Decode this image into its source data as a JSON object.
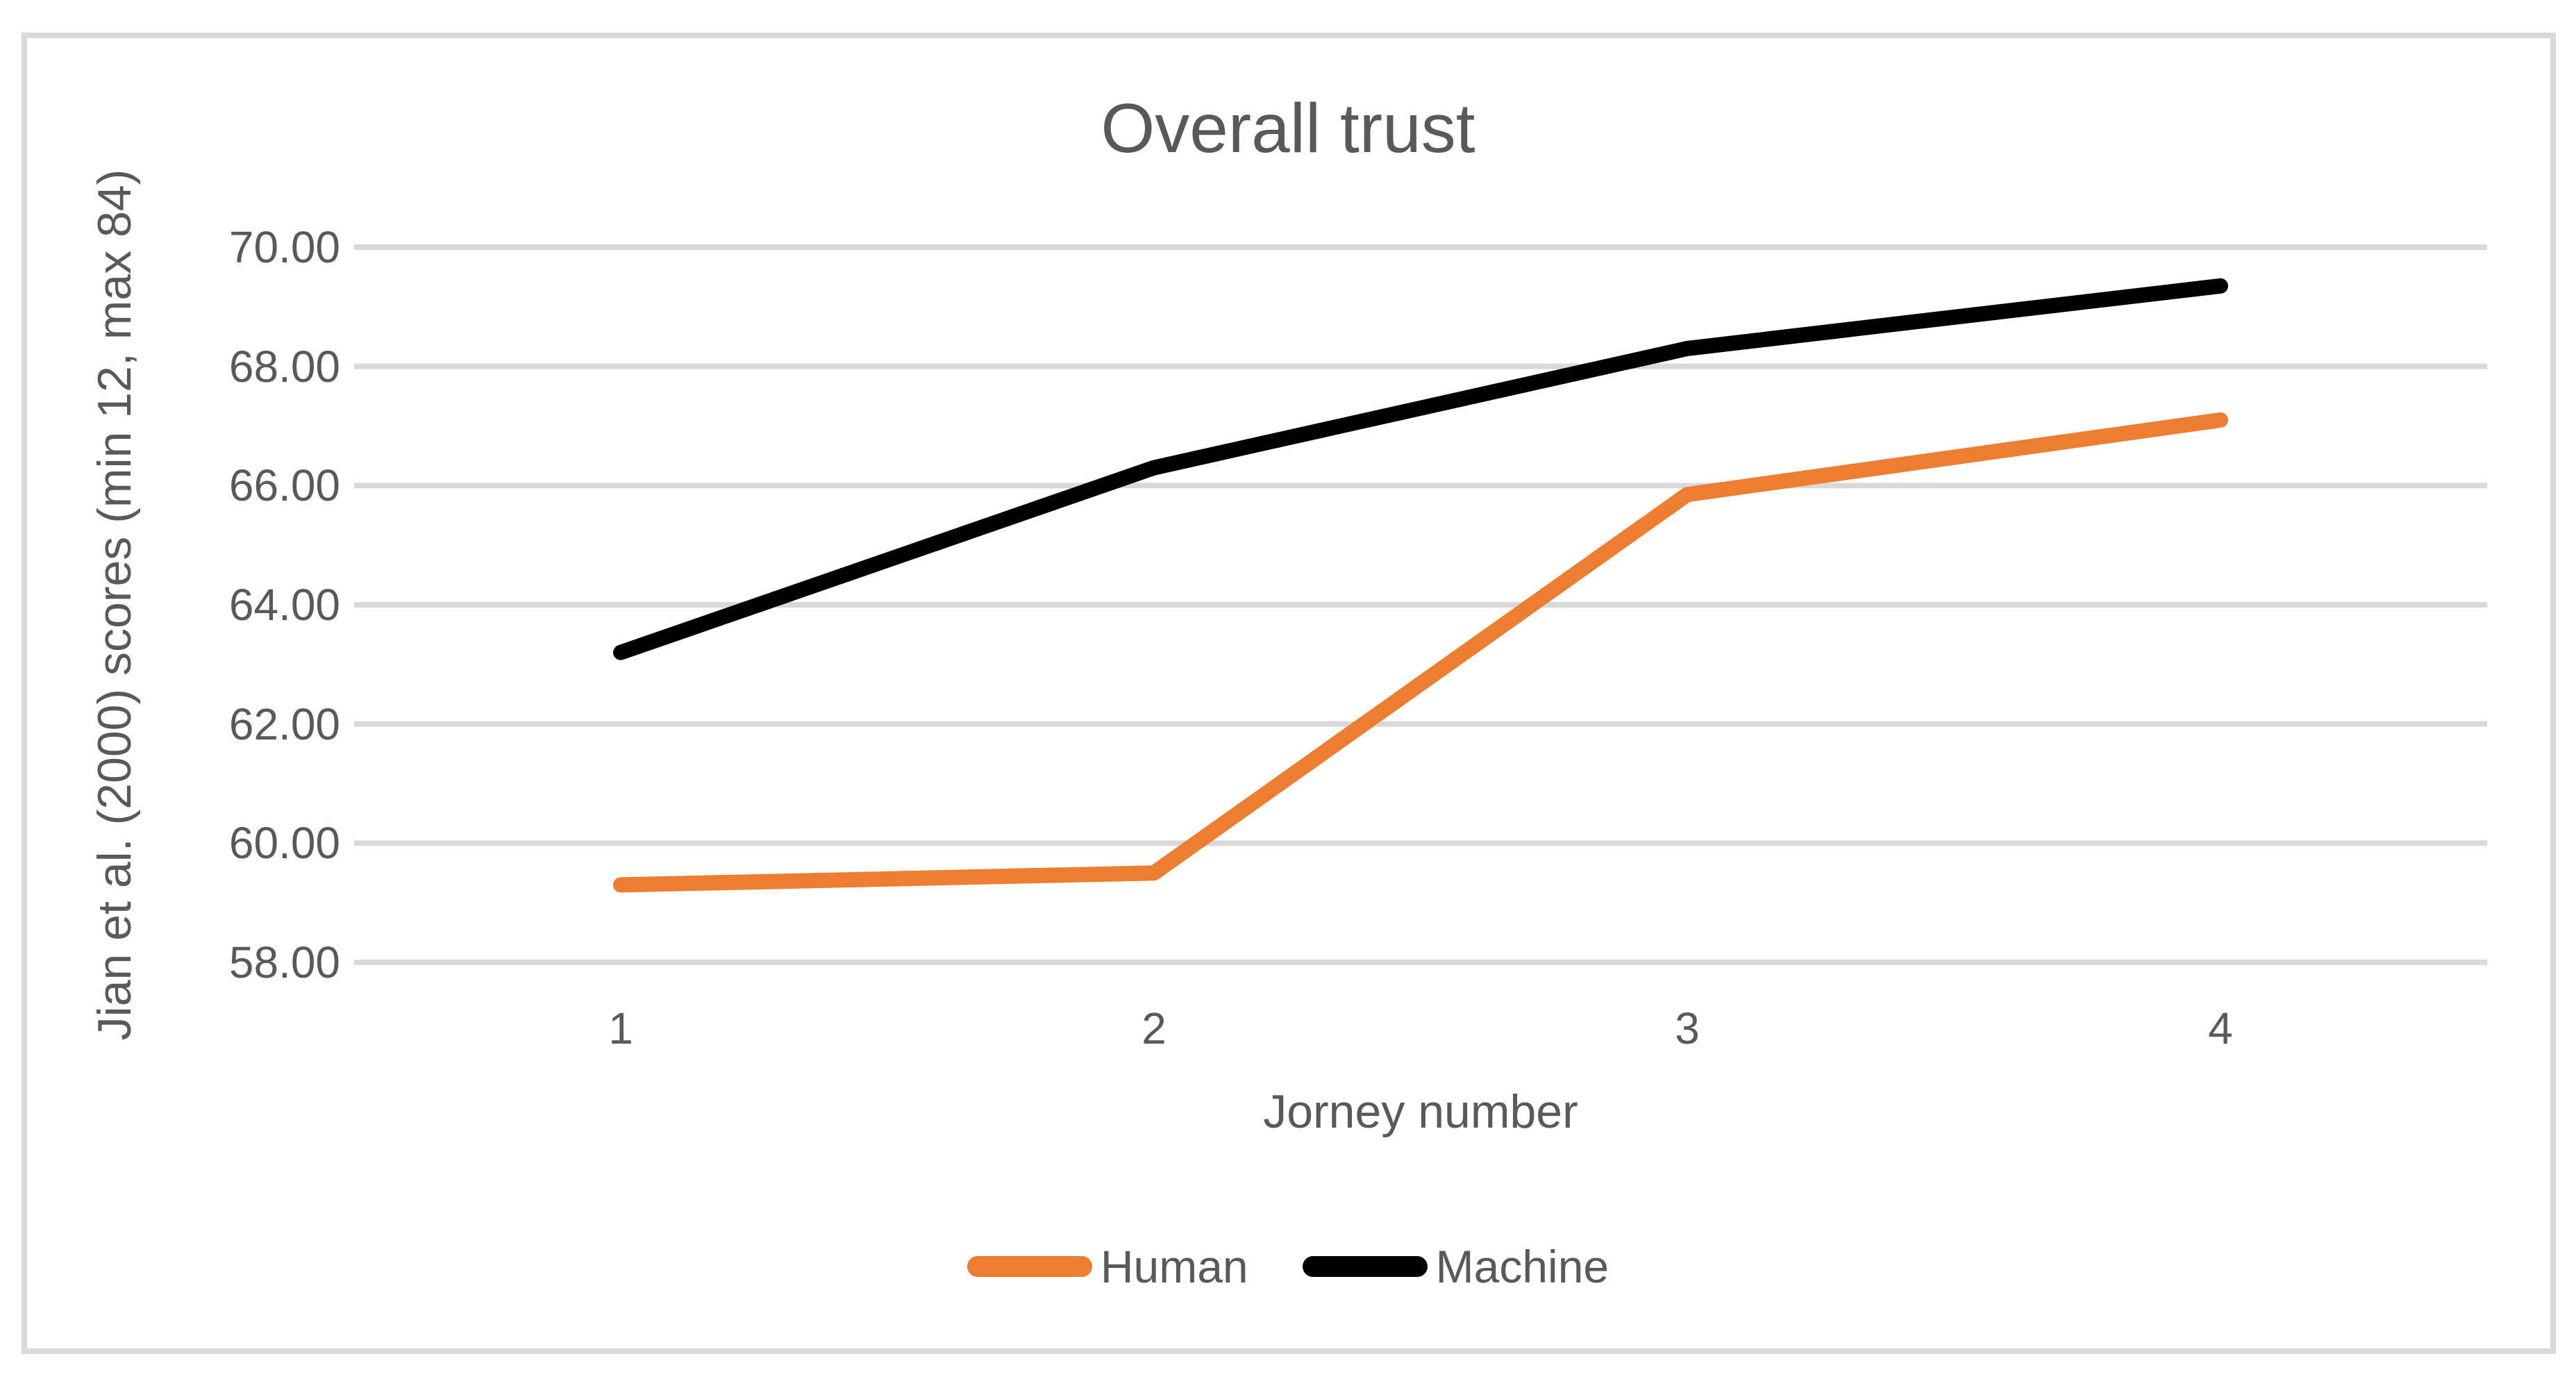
{
  "chart_data": {
    "type": "line",
    "title": "Overall trust",
    "xlabel": "Jorney number",
    "ylabel": "Jian et al. (2000) scores (min 12, max 84)",
    "categories": [
      "1",
      "2",
      "3",
      "4"
    ],
    "series": [
      {
        "name": "Human",
        "color": "#ED7D31",
        "values": [
          59.3,
          59.5,
          65.85,
          67.1
        ]
      },
      {
        "name": "Machine",
        "color": "#000000",
        "values": [
          63.2,
          66.3,
          68.3,
          69.35
        ]
      }
    ],
    "y_axis": {
      "min": 58,
      "max": 70,
      "step": 2,
      "tick_labels": [
        "58.00",
        "60.00",
        "62.00",
        "64.00",
        "66.00",
        "68.00",
        "70.00"
      ]
    },
    "grid": true,
    "legend_position": "bottom"
  },
  "colors": {
    "background": "#FFFFFF",
    "text": "#595959",
    "gridline": "#D9D9D9",
    "border": "#D9D9D9"
  }
}
